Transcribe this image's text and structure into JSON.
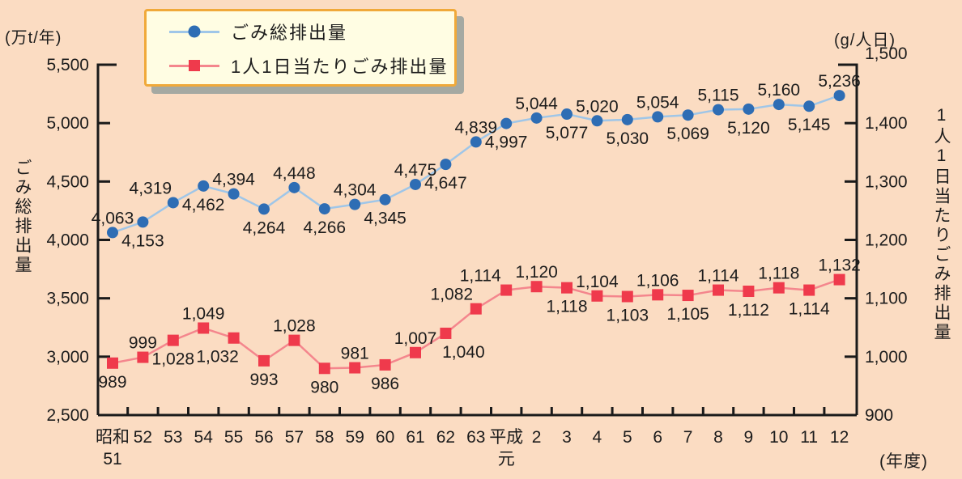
{
  "colors": {
    "background": "#fbdcc2",
    "text": "#1c1c1c",
    "axis": "#1a1a1a",
    "legend_bg": "#fffde3",
    "legend_border": "#f0a93a",
    "legend_shadow": "#a5a9a2",
    "series_total_marker": "#2e6db4",
    "series_total_line": "#9fc6e8",
    "series_percapita_marker": "#ef3a4c",
    "series_percapita_line": "#f4868d"
  },
  "chart_data": {
    "type": "line",
    "x_labels": [
      "昭和|51",
      "52",
      "53",
      "54",
      "55",
      "56",
      "57",
      "58",
      "59",
      "60",
      "61",
      "62",
      "63",
      "平成|元",
      "2",
      "3",
      "4",
      "5",
      "6",
      "7",
      "8",
      "9",
      "10",
      "11",
      "12"
    ],
    "x_axis_suffix": "(年度)",
    "grid": false,
    "legend_position": "top-left",
    "left_axis": {
      "unit": "(万t/年)",
      "title": "ごみ総排出量",
      "min": 2500,
      "max": 5500,
      "step": 500
    },
    "right_axis": {
      "unit": "(g/人日)",
      "title": "1人1日当たりごみ排出量",
      "min": 900,
      "max": 1500,
      "step": 100
    },
    "series": [
      {
        "name": "ごみ総排出量",
        "axis": "left",
        "marker": "circle",
        "marker_color": "#2e6db4",
        "line_color": "#9fc6e8",
        "values": [
          4063,
          4153,
          4319,
          4462,
          4394,
          4264,
          4448,
          4266,
          4304,
          4345,
          4475,
          4647,
          4839,
          4997,
          5044,
          5077,
          5020,
          5030,
          5054,
          5069,
          5115,
          5120,
          5160,
          5145,
          5236
        ],
        "label_side": [
          "above",
          "below",
          "above",
          "below",
          "above",
          "below",
          "above",
          "below",
          "above",
          "below",
          "above",
          "below",
          "above",
          "below",
          "above",
          "below",
          "above",
          "below",
          "above",
          "below",
          "above",
          "below",
          "above",
          "below",
          "above"
        ],
        "label_dx": [
          0,
          0,
          -28,
          0,
          0,
          0,
          0,
          0,
          0,
          0,
          0,
          0,
          0,
          0,
          0,
          0,
          0,
          0,
          0,
          0,
          0,
          0,
          0,
          0,
          0
        ]
      },
      {
        "name": "1人1日当たりごみ排出量",
        "axis": "right",
        "marker": "square",
        "marker_color": "#ef3a4c",
        "line_color": "#f4868d",
        "values": [
          989,
          999,
          1028,
          1049,
          1032,
          993,
          1028,
          980,
          981,
          986,
          1007,
          1040,
          1082,
          1114,
          1120,
          1118,
          1104,
          1103,
          1106,
          1105,
          1114,
          1112,
          1118,
          1114,
          1132
        ],
        "label_side": [
          "below",
          "above",
          "below",
          "above",
          "below",
          "below",
          "above",
          "below",
          "above",
          "below",
          "above",
          "below",
          "above",
          "above",
          "above",
          "below",
          "above",
          "below",
          "above",
          "below",
          "above",
          "below",
          "above",
          "below",
          "above"
        ],
        "label_dx": [
          0,
          0,
          0,
          0,
          -20,
          0,
          0,
          0,
          0,
          0,
          0,
          22,
          -30,
          -32,
          0,
          0,
          0,
          0,
          0,
          0,
          0,
          0,
          0,
          0,
          0
        ]
      }
    ]
  }
}
